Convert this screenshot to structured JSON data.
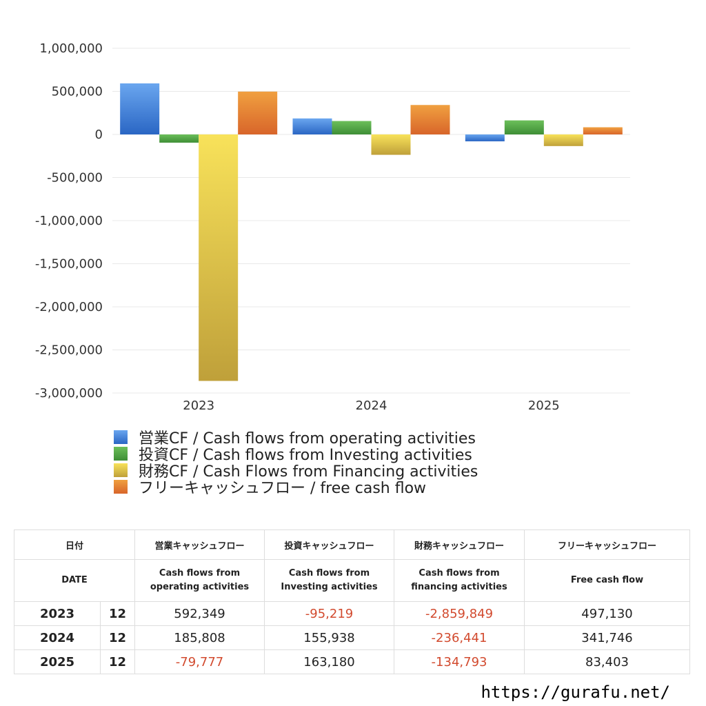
{
  "chart_data": {
    "type": "bar",
    "categories": [
      "2023",
      "2024",
      "2025"
    ],
    "series": [
      {
        "name": "営業CF / Cash flows from operating activities",
        "values": [
          592349,
          185808,
          -79777
        ],
        "color_top": "#6aa6ef",
        "color_bottom": "#2a66c4"
      },
      {
        "name": "投資CF / Cash flows from Investing activities",
        "values": [
          -95219,
          155938,
          163180
        ],
        "color_top": "#6cbf5a",
        "color_bottom": "#3e8e36"
      },
      {
        "name": "財務CF / Cash Flows from Financing activities",
        "values": [
          -2859849,
          -236441,
          -134793
        ],
        "color_top": "#f8e25a",
        "color_bottom": "#bfa03a"
      },
      {
        "name": "フリーキャッシュフロー / free cash flow",
        "values": [
          497130,
          341746,
          83403
        ],
        "color_top": "#f0a040",
        "color_bottom": "#d8652a"
      }
    ],
    "ylim": [
      -3000000,
      1000000
    ],
    "yticks": [
      1000000,
      500000,
      0,
      -500000,
      -1000000,
      -1500000,
      -2000000,
      -2500000,
      -3000000
    ],
    "ytick_labels": [
      "1,000,000",
      "500,000",
      "0",
      "-500,000",
      "-1,000,000",
      "-1,500,000",
      "-2,000,000",
      "-2,500,000",
      "-3,000,000"
    ],
    "grid": true,
    "legend_position": "bottom-left"
  },
  "table": {
    "header_ja": [
      "日付",
      "営業キャッシュフロー",
      "投資キャッシュフロー",
      "財務キャッシュフロー",
      "フリーキャッシュフロー"
    ],
    "header_en": {
      "date": "DATE",
      "operating": [
        "Cash flows from",
        "operating activities"
      ],
      "investing": [
        "Cash flows from",
        "Investing activities"
      ],
      "financing": [
        "Cash flows from",
        "financing activities"
      ],
      "free": "Free cash flow"
    },
    "rows": [
      {
        "year": "2023",
        "month": "12",
        "operating": "592,349",
        "investing": "-95,219",
        "financing": "-2,859,849",
        "free": "497,130"
      },
      {
        "year": "2024",
        "month": "12",
        "operating": "185,808",
        "investing": "155,938",
        "financing": "-236,441",
        "free": "341,746"
      },
      {
        "year": "2025",
        "month": "12",
        "operating": "-79,777",
        "investing": "163,180",
        "financing": "-134,793",
        "free": "83,403"
      }
    ],
    "negative_color": "#d24a2e"
  },
  "footer": {
    "url": "https://gurafu.net/"
  }
}
